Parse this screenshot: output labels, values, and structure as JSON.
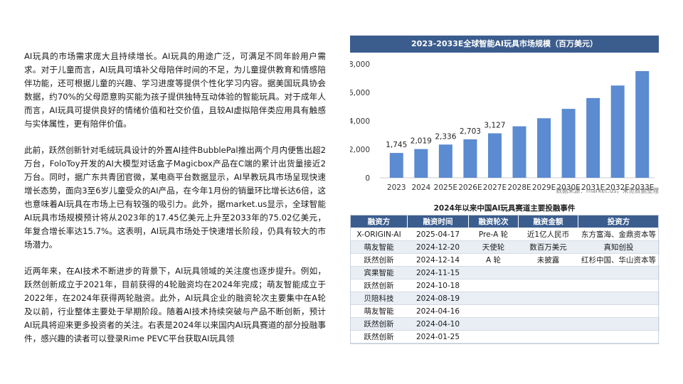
{
  "paragraphs": [
    "AI玩具的市场需求庞大且持续增长。AI玩具的用途广泛，可满足不同年龄用户需求。对于儿童而言，AI玩具可填补父母陪伴时间的不足，为儿童提供教育和情感陪伴功能，还可根据儿童的兴趣、学习进度等提供个性化学习内容。据美国玩具协会数据，约70%的父母愿意购买能为孩子提供独特互动体验的智能玩具。对于成年人而言，AI玩具可提供良好的情绪价值和社交价值，且较AI虚拟陪伴类应用具有触感与实体属性，更有陪伴价值。",
    "此前，跃然创新针对毛绒玩具设计的外置AI挂件BubblePal推出两个月内便售出超2万台，FoloToy开发的AI大模型对话盒子Magicbox产品在C端的累计出货量接近2万台。同时，据广东共青团官微，某电商平台数据显示，AI早教玩具市场呈现快速增长态势，面向3至6岁儿童受众的AI产品，在今年1月份的销量环比增长达6倍，这也意味着AI玩具在市场上已有较强的吸引力。此外，据market.us显示，全球智能AI玩具市场规模预计将从2023年的17.45亿美元上升至2033年的75.02亿美元，年复合增长率达15.7%。这表明，AI玩具市场处于快速增长阶段，仍具有较大的市场潜力。",
    "近两年来，在AI技术不断进步的背景下，AI玩具领域的关注度也逐步提升。例如，跃然创新成立于2021年，目前获得的4轮融资均在2024年完成；萌友智能成立于2022年，在2024年获得两轮融资。此外，AI玩具企业的融资轮次主要集中在A轮及以前，行业整体主要处于早期阶段。随着AI技术持续突破与产品不断创新，预计AI玩具将迎来更多投资者的关注。右表是2024年以来国内AI玩具赛道的部分投融事件，感兴趣的读者可以登录Rime PEVC平台获取AI玩具领"
  ],
  "chart_data": {
    "type": "bar",
    "title": "2023-2033E全球智能AI玩具市场规模（百万美元）",
    "categories": [
      "2023",
      "2024",
      "2025E",
      "2026E",
      "2027E",
      "2028E",
      "2029E",
      "2030E",
      "2031E",
      "2032E",
      "2033E"
    ],
    "values": [
      1745,
      2019,
      2336,
      2703,
      3127,
      3619,
      4187,
      4845,
      5606,
      6486,
      7502
    ],
    "value_labels": [
      "1,745",
      "2,019",
      "2,336",
      "2,703",
      "3,127",
      "",
      "",
      "",
      "",
      "",
      ""
    ],
    "ylim": [
      0,
      8000
    ],
    "yticks": [
      "0",
      "2,000",
      "4,000",
      "6,000",
      "8,000"
    ],
    "xlabel": "",
    "ylabel": "",
    "bar_color": "#5b8bd0",
    "grid": false
  },
  "source": "数据来源：market.us，来觅数据整理",
  "table": {
    "title": "2024年以来中国AI玩具赛道主要投融事件",
    "headers": [
      "融资方",
      "融资时间",
      "融资轮次",
      "融资金额",
      "投资方"
    ],
    "rows": [
      [
        "X-ORIGIN-AI",
        "2025-04-17",
        "Pre-A 轮",
        "近1亿人民币",
        "东方富海、金鼎资本等"
      ],
      [
        "萌友智能",
        "2024-12-20",
        "天使轮",
        "数百万美元",
        "真知创投"
      ],
      [
        "跃然创新",
        "2024-12-14",
        "A 轮",
        "未披露",
        "红杉中国、华山资本等"
      ],
      [
        "宾果智能",
        "2024-11-15",
        "",
        "",
        ""
      ],
      [
        "跃然创新",
        "2024-10-18",
        "",
        "",
        ""
      ],
      [
        "贝陪科技",
        "2024-08-19",
        "",
        "",
        ""
      ],
      [
        "萌友智能",
        "2024-04-16",
        "",
        "",
        ""
      ],
      [
        "跃然创新",
        "2024-04-10",
        "",
        "",
        ""
      ],
      [
        "跃然创新",
        "2024-01-25",
        "",
        "",
        ""
      ]
    ]
  }
}
